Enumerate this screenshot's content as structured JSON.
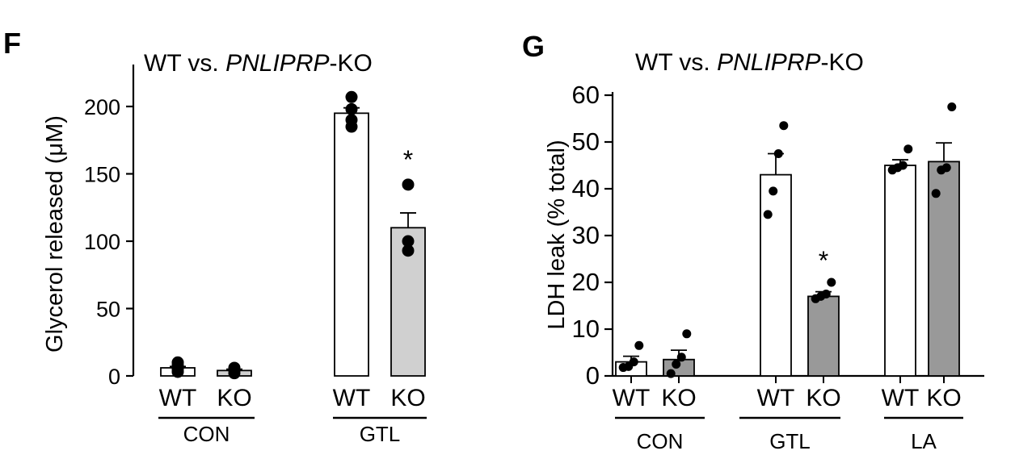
{
  "chart_data": [
    {
      "panel": "F",
      "type": "bar",
      "title_prefix": "WT vs. ",
      "title_italic": "PNLIPRP",
      "title_suffix": "-KO",
      "ylabel": "Glycerol released (μM)",
      "ylim": [
        0,
        230
      ],
      "yticks": [
        "0",
        "50",
        "100",
        "150",
        "200"
      ],
      "tick_values": [
        0,
        50,
        100,
        150,
        200
      ],
      "groups": [
        "CON",
        "GTL"
      ],
      "bars": [
        {
          "group": "CON",
          "label": "WT",
          "value": 6,
          "error": 1,
          "color": "#ffffff",
          "points": [
            3,
            5,
            8,
            10
          ],
          "sig": ""
        },
        {
          "group": "CON",
          "label": "KO",
          "value": 4,
          "error": 1,
          "color": "#d0d0d0",
          "points": [
            2,
            4,
            5,
            6
          ],
          "sig": ""
        },
        {
          "group": "GTL",
          "label": "WT",
          "value": 195,
          "error": 4,
          "color": "#ffffff",
          "points": [
            185,
            190,
            198,
            207
          ],
          "sig": ""
        },
        {
          "group": "GTL",
          "label": "KO",
          "value": 110,
          "error": 11,
          "color": "#d0d0d0",
          "points": [
            93,
            100,
            142
          ],
          "sig": "*"
        }
      ]
    },
    {
      "panel": "G",
      "type": "bar",
      "title_prefix": "WT vs. ",
      "title_italic": "PNLIPRP",
      "title_suffix": "-KO",
      "ylabel": "LDH leak (% total)",
      "ylim": [
        0,
        60
      ],
      "yticks": [
        "0",
        "10",
        "20",
        "30",
        "40",
        "50",
        "60"
      ],
      "tick_values": [
        0,
        10,
        20,
        30,
        40,
        50,
        60
      ],
      "groups": [
        "CON",
        "GTL",
        "LA"
      ],
      "bars": [
        {
          "group": "CON",
          "label": "WT",
          "value": 3,
          "error": 1.2,
          "color": "#ffffff",
          "points": [
            1.8,
            2,
            3,
            6.5
          ],
          "sig": ""
        },
        {
          "group": "CON",
          "label": "KO",
          "value": 3.5,
          "error": 2,
          "color": "#999999",
          "points": [
            0.5,
            2.5,
            4,
            9
          ],
          "sig": ""
        },
        {
          "group": "GTL",
          "label": "WT",
          "value": 43,
          "error": 4.5,
          "color": "#ffffff",
          "points": [
            34.5,
            39.5,
            47.5,
            53.5
          ],
          "sig": ""
        },
        {
          "group": "GTL",
          "label": "KO",
          "value": 17,
          "error": 1,
          "color": "#999999",
          "points": [
            16.5,
            17,
            17.5,
            20
          ],
          "sig": "*"
        },
        {
          "group": "LA",
          "label": "WT",
          "value": 45,
          "error": 1.2,
          "color": "#ffffff",
          "points": [
            44,
            44.5,
            45,
            48.5
          ],
          "sig": ""
        },
        {
          "group": "LA",
          "label": "KO",
          "value": 45.8,
          "error": 4,
          "color": "#999999",
          "points": [
            39,
            44,
            44.5,
            57.5
          ],
          "sig": ""
        }
      ]
    }
  ]
}
